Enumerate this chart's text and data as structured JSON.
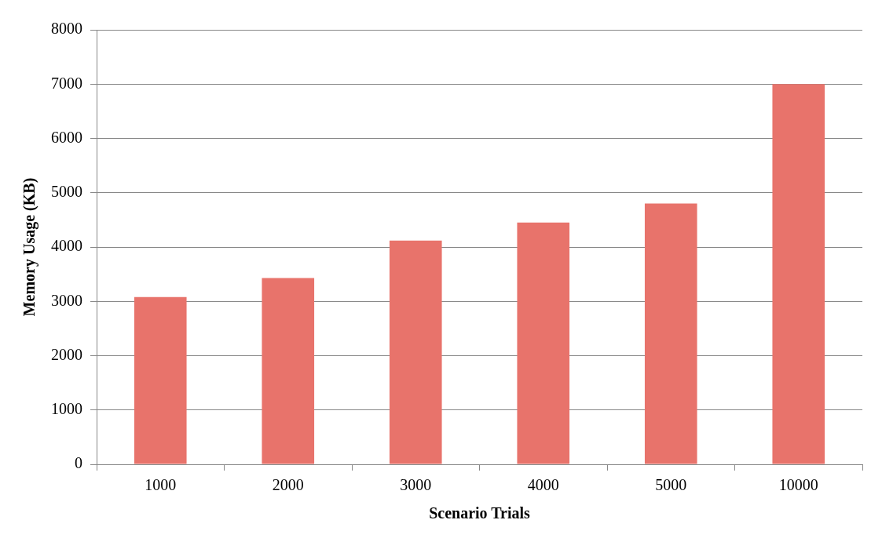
{
  "chart_data": {
    "type": "bar",
    "xlabel": "Scenario Trials",
    "ylabel": "Memory Usage (KB)",
    "categories": [
      "1000",
      "2000",
      "3000",
      "4000",
      "5000",
      "10000"
    ],
    "values": [
      3080,
      3430,
      4120,
      4450,
      4800,
      7000
    ],
    "color": "#e8736b",
    "ylim": [
      0,
      8000
    ],
    "yticks": [
      0,
      1000,
      2000,
      3000,
      4000,
      5000,
      6000,
      7000,
      8000
    ],
    "grid": "y",
    "legend": false
  }
}
